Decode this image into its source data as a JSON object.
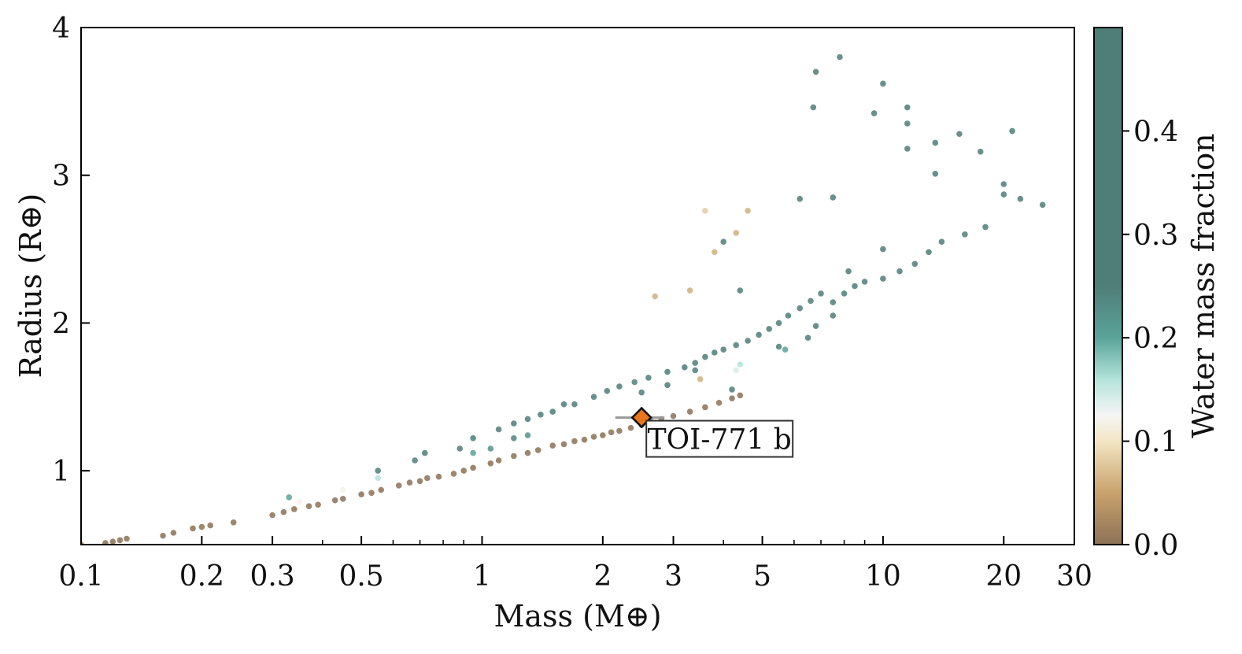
{
  "chart_data": {
    "type": "scatter",
    "xlabel": "Mass (M⊕)",
    "ylabel": "Radius (R⊕)",
    "xscale": "log",
    "xlim": [
      0.1,
      30
    ],
    "ylim": [
      0.5,
      4
    ],
    "xticks": [
      {
        "value": 0.1,
        "label": "0.1"
      },
      {
        "value": 0.2,
        "label": "0.2"
      },
      {
        "value": 0.3,
        "label": "0.3"
      },
      {
        "value": 0.5,
        "label": "0.5"
      },
      {
        "value": 1,
        "label": "1"
      },
      {
        "value": 2,
        "label": "2"
      },
      {
        "value": 3,
        "label": "3"
      },
      {
        "value": 5,
        "label": "5"
      },
      {
        "value": 10,
        "label": "10"
      },
      {
        "value": 20,
        "label": "20"
      },
      {
        "value": 30,
        "label": "30"
      }
    ],
    "yticks": [
      {
        "value": 1,
        "label": "1"
      },
      {
        "value": 2,
        "label": "2"
      },
      {
        "value": 3,
        "label": "3"
      },
      {
        "value": 4,
        "label": "4"
      }
    ],
    "colorbar": {
      "label": "Water mass fraction",
      "range": [
        0,
        0.5
      ],
      "ticks": [
        {
          "value": 0.0,
          "label": "0.0"
        },
        {
          "value": 0.1,
          "label": "0.1"
        },
        {
          "value": 0.2,
          "label": "0.2"
        },
        {
          "value": 0.3,
          "label": "0.3"
        },
        {
          "value": 0.4,
          "label": "0.4"
        }
      ]
    },
    "colormap": [
      {
        "stop": 0.0,
        "color": "#8c7156"
      },
      {
        "stop": 0.1,
        "color": "#c9a26c"
      },
      {
        "stop": 0.2,
        "color": "#f3e6c4"
      },
      {
        "stop": 0.25,
        "color": "#f5f5f5"
      },
      {
        "stop": 0.32,
        "color": "#b3e3da"
      },
      {
        "stop": 0.4,
        "color": "#5aa399"
      },
      {
        "stop": 0.5,
        "color": "#4f7e78"
      }
    ],
    "points": [
      [
        0.1,
        0.5,
        0.0
      ],
      [
        0.115,
        0.51,
        0.0
      ],
      [
        0.12,
        0.52,
        0.0
      ],
      [
        0.125,
        0.53,
        0.0
      ],
      [
        0.13,
        0.54,
        0.0
      ],
      [
        0.16,
        0.56,
        0.0
      ],
      [
        0.17,
        0.58,
        0.0
      ],
      [
        0.19,
        0.61,
        0.0
      ],
      [
        0.2,
        0.62,
        0.0
      ],
      [
        0.21,
        0.63,
        0.0
      ],
      [
        0.24,
        0.65,
        0.0
      ],
      [
        0.3,
        0.7,
        0.0
      ],
      [
        0.32,
        0.72,
        0.0
      ],
      [
        0.34,
        0.74,
        0.0
      ],
      [
        0.37,
        0.76,
        0.0
      ],
      [
        0.39,
        0.77,
        0.0
      ],
      [
        0.43,
        0.8,
        0.0
      ],
      [
        0.45,
        0.81,
        0.0
      ],
      [
        0.5,
        0.84,
        0.0
      ],
      [
        0.53,
        0.85,
        0.0
      ],
      [
        0.56,
        0.87,
        0.0
      ],
      [
        0.62,
        0.9,
        0.0
      ],
      [
        0.66,
        0.92,
        0.0
      ],
      [
        0.7,
        0.93,
        0.0
      ],
      [
        0.73,
        0.95,
        0.0
      ],
      [
        0.78,
        0.96,
        0.0
      ],
      [
        0.85,
        0.98,
        0.0
      ],
      [
        0.9,
        1.0,
        0.0
      ],
      [
        0.95,
        1.02,
        0.0
      ],
      [
        1.05,
        1.05,
        0.0
      ],
      [
        1.1,
        1.07,
        0.0
      ],
      [
        1.2,
        1.1,
        0.0
      ],
      [
        1.3,
        1.12,
        0.0
      ],
      [
        1.38,
        1.14,
        0.0
      ],
      [
        1.5,
        1.17,
        0.0
      ],
      [
        1.6,
        1.18,
        0.0
      ],
      [
        1.7,
        1.2,
        0.0
      ],
      [
        1.8,
        1.21,
        0.0
      ],
      [
        1.9,
        1.23,
        0.0
      ],
      [
        2.0,
        1.24,
        0.0
      ],
      [
        2.1,
        1.26,
        0.0
      ],
      [
        2.2,
        1.27,
        0.0
      ],
      [
        2.35,
        1.29,
        0.0
      ],
      [
        2.5,
        1.31,
        0.0
      ],
      [
        2.65,
        1.33,
        0.0
      ],
      [
        2.8,
        1.35,
        0.0
      ],
      [
        3.0,
        1.37,
        0.0
      ],
      [
        3.3,
        1.4,
        0.0
      ],
      [
        3.6,
        1.43,
        0.0
      ],
      [
        3.9,
        1.46,
        0.0
      ],
      [
        4.2,
        1.49,
        0.0
      ],
      [
        4.4,
        1.51,
        0.0
      ],
      [
        0.33,
        0.82,
        0.2
      ],
      [
        0.35,
        0.79,
        0.12
      ],
      [
        0.45,
        0.87,
        0.12
      ],
      [
        0.55,
        0.95,
        0.16
      ],
      [
        0.95,
        1.12,
        0.2
      ],
      [
        1.05,
        1.15,
        0.22
      ],
      [
        1.3,
        1.24,
        0.22
      ],
      [
        1.2,
        1.22,
        0.24
      ],
      [
        0.55,
        1.0,
        0.34
      ],
      [
        0.68,
        1.07,
        0.33
      ],
      [
        0.88,
        1.15,
        0.3
      ],
      [
        1.6,
        1.45,
        0.3
      ],
      [
        2.5,
        1.53,
        0.32
      ],
      [
        2.9,
        1.58,
        0.32
      ],
      [
        3.4,
        1.68,
        0.3
      ],
      [
        5.5,
        1.84,
        0.3
      ],
      [
        6.5,
        1.9,
        0.3
      ],
      [
        4.4,
        1.72,
        0.16
      ],
      [
        4.3,
        1.68,
        0.14
      ],
      [
        5.7,
        1.82,
        0.2
      ],
      [
        4.2,
        1.55,
        0.4
      ],
      [
        0.72,
        1.12,
        0.42
      ],
      [
        0.95,
        1.22,
        0.45
      ],
      [
        1.1,
        1.28,
        0.42
      ],
      [
        1.2,
        1.32,
        0.42
      ],
      [
        1.3,
        1.35,
        0.42
      ],
      [
        1.4,
        1.38,
        0.42
      ],
      [
        1.5,
        1.4,
        0.42
      ],
      [
        1.7,
        1.45,
        0.42
      ],
      [
        1.9,
        1.5,
        0.42
      ],
      [
        2.05,
        1.54,
        0.45
      ],
      [
        2.2,
        1.57,
        0.45
      ],
      [
        2.4,
        1.6,
        0.42
      ],
      [
        2.6,
        1.63,
        0.45
      ],
      [
        2.9,
        1.67,
        0.42
      ],
      [
        3.2,
        1.7,
        0.45
      ],
      [
        3.4,
        1.73,
        0.42
      ],
      [
        3.6,
        1.77,
        0.45
      ],
      [
        3.8,
        1.8,
        0.45
      ],
      [
        4.0,
        1.82,
        0.45
      ],
      [
        4.3,
        1.85,
        0.45
      ],
      [
        4.6,
        1.88,
        0.45
      ],
      [
        4.9,
        1.92,
        0.45
      ],
      [
        5.2,
        1.96,
        0.45
      ],
      [
        5.5,
        2.0,
        0.45
      ],
      [
        5.8,
        2.05,
        0.45
      ],
      [
        6.2,
        2.1,
        0.45
      ],
      [
        6.6,
        2.15,
        0.45
      ],
      [
        7.0,
        2.2,
        0.45
      ],
      [
        7.5,
        2.14,
        0.42
      ],
      [
        8.0,
        2.2,
        0.42
      ],
      [
        8.5,
        2.25,
        0.42
      ],
      [
        9.0,
        2.28,
        0.42
      ],
      [
        10.0,
        2.3,
        0.42
      ],
      [
        11.0,
        2.35,
        0.42
      ],
      [
        12.0,
        2.4,
        0.42
      ],
      [
        13.0,
        2.48,
        0.42
      ],
      [
        14.0,
        2.55,
        0.42
      ],
      [
        16.0,
        2.6,
        0.42
      ],
      [
        18.0,
        2.65,
        0.42
      ],
      [
        20.0,
        2.87,
        0.42
      ],
      [
        22.0,
        2.84,
        0.42
      ],
      [
        25.0,
        2.8,
        0.42
      ],
      [
        6.7,
        3.46,
        0.42
      ],
      [
        6.8,
        3.7,
        0.4
      ],
      [
        7.8,
        3.8,
        0.42
      ],
      [
        9.5,
        3.42,
        0.42
      ],
      [
        10.0,
        3.62,
        0.42
      ],
      [
        11.5,
        3.46,
        0.42
      ],
      [
        11.5,
        3.18,
        0.42
      ],
      [
        11.5,
        3.35,
        0.34
      ],
      [
        13.5,
        3.22,
        0.36
      ],
      [
        13.5,
        3.01,
        0.34
      ],
      [
        15.5,
        3.28,
        0.42
      ],
      [
        17.5,
        3.16,
        0.42
      ],
      [
        20.0,
        2.94,
        0.42
      ],
      [
        21.0,
        3.3,
        0.42
      ],
      [
        6.2,
        2.84,
        0.42
      ],
      [
        7.5,
        2.85,
        0.42
      ],
      [
        8.2,
        2.35,
        0.42
      ],
      [
        10.0,
        2.5,
        0.42
      ],
      [
        4.4,
        2.22,
        0.42
      ],
      [
        4.0,
        2.55,
        0.36
      ],
      [
        6.8,
        1.98,
        0.32
      ],
      [
        7.5,
        2.05,
        0.3
      ],
      [
        3.6,
        2.76,
        0.08
      ],
      [
        3.8,
        2.48,
        0.06
      ],
      [
        4.3,
        2.61,
        0.06
      ],
      [
        4.6,
        2.76,
        0.06
      ],
      [
        3.3,
        2.22,
        0.06
      ],
      [
        2.7,
        2.18,
        0.06
      ],
      [
        3.5,
        1.62,
        0.06
      ]
    ],
    "highlight": {
      "label": "TOI-771 b",
      "mass": 2.5,
      "radius": 1.36,
      "mass_err": 0.35,
      "radius_err": 0.07,
      "color": "#e8761a"
    }
  }
}
